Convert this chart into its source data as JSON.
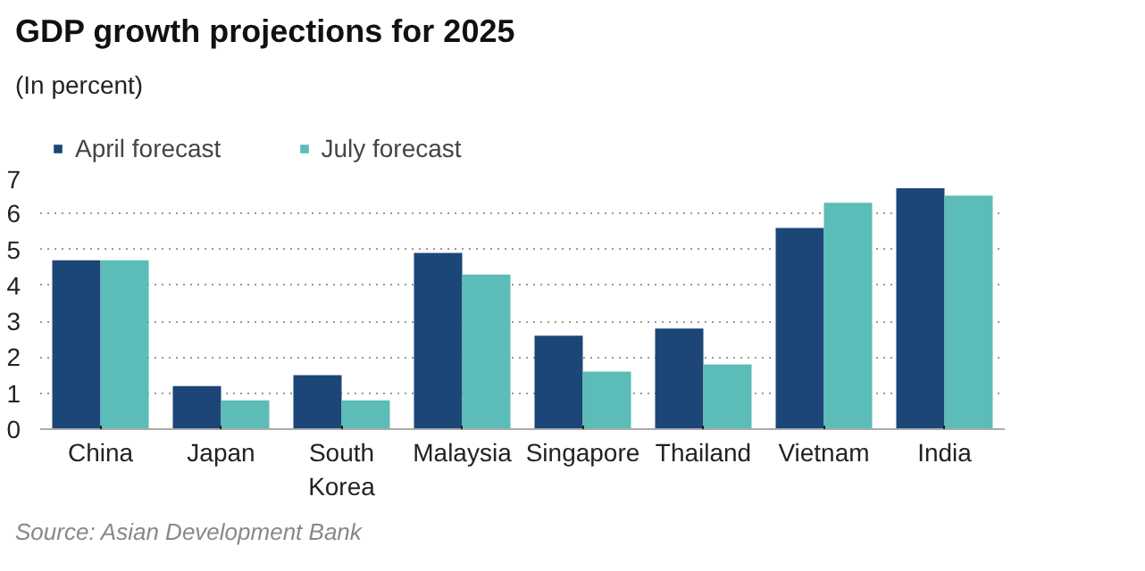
{
  "chart_data": {
    "type": "bar",
    "title": "GDP growth projections for 2025",
    "subtitle": "(In percent)",
    "categories": [
      "China",
      "Japan",
      "South Korea",
      "Malaysia",
      "Singapore",
      "Thailand",
      "Vietnam",
      "India"
    ],
    "series": [
      {
        "name": "April forecast",
        "color": "#1b4677",
        "values": [
          4.7,
          1.2,
          1.5,
          4.9,
          2.6,
          2.8,
          5.6,
          6.7
        ]
      },
      {
        "name": "July forecast",
        "color": "#5bbcb8",
        "values": [
          4.7,
          0.8,
          0.8,
          4.3,
          1.6,
          1.8,
          6.3,
          6.5
        ]
      }
    ],
    "ylim": [
      0,
      7
    ],
    "yticks": [
      0,
      1,
      2,
      3,
      4,
      5,
      6,
      7
    ],
    "grid": "y",
    "legend": "top left",
    "annotations": [
      "Source: Asian Development Bank"
    ]
  }
}
